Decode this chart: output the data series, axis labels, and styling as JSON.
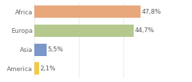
{
  "categories": [
    "America",
    "Asia",
    "Europa",
    "Africa"
  ],
  "values": [
    2.1,
    5.5,
    44.7,
    47.8
  ],
  "labels": [
    "2,1%",
    "5,5%",
    "44,7%",
    "47,8%"
  ],
  "colors": [
    "#f2c84b",
    "#7b96c8",
    "#b5c98e",
    "#e8a87c"
  ],
  "background_color": "#ffffff",
  "label_fontsize": 6.5,
  "tick_fontsize": 6.5,
  "bar_height": 0.65,
  "xlim": 58,
  "grid_color": "#e0e0e0"
}
